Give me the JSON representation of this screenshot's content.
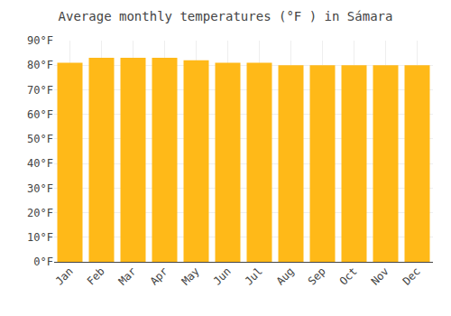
{
  "chart_data": {
    "type": "bar",
    "title": "Average monthly temperatures (°F ) in Sámara",
    "categories": [
      "Jan",
      "Feb",
      "Mar",
      "Apr",
      "May",
      "Jun",
      "Jul",
      "Aug",
      "Sep",
      "Oct",
      "Nov",
      "Dec"
    ],
    "values": [
      81,
      83,
      83,
      83,
      82,
      81,
      81,
      80,
      80,
      80,
      80,
      80
    ],
    "color": "#FFB918",
    "ylim": [
      0,
      90
    ],
    "yticks": [
      {
        "value": 0,
        "label": "0°F"
      },
      {
        "value": 10,
        "label": "10°F"
      },
      {
        "value": 20,
        "label": "20°F"
      },
      {
        "value": 30,
        "label": "30°F"
      },
      {
        "value": 40,
        "label": "40°F"
      },
      {
        "value": 50,
        "label": "50°F"
      },
      {
        "value": 60,
        "label": "60°F"
      },
      {
        "value": 70,
        "label": "70°F"
      },
      {
        "value": 80,
        "label": "80°F"
      },
      {
        "value": 90,
        "label": "90°F"
      }
    ],
    "grid": true
  }
}
